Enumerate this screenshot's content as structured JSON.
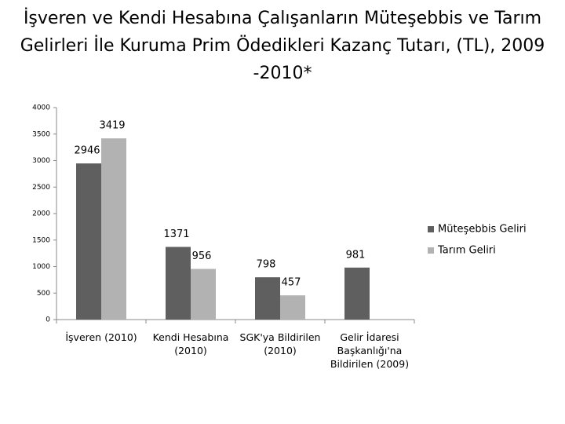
{
  "chart_data": {
    "type": "bar",
    "title": "İşveren ve Kendi Hesabına Çalışanların Müteşebbis ve Tarım Gelirleri İle Kuruma Prim Ödedikleri Kazanç Tutarı, (TL), 2009 -2010*",
    "categories": [
      "İşveren (2010)",
      "Kendi Hesabına (2010)",
      "SGK'ya Bildirilen (2010)",
      "Gelir İdaresi Başkanlığı'na Bildirilen (2009)"
    ],
    "series": [
      {
        "name": "Müteşebbis Geliri",
        "color": "#5f5f5f",
        "values": [
          2946,
          1371,
          798,
          981
        ]
      },
      {
        "name": "Tarım Geliri",
        "color": "#b2b2b2",
        "values": [
          3419,
          956,
          457,
          null
        ]
      }
    ],
    "ylim": [
      0,
      4000
    ],
    "yticks": [
      0,
      500,
      1000,
      1500,
      2000,
      2500,
      3000,
      3500,
      4000
    ],
    "grid": false,
    "legend": "right"
  }
}
